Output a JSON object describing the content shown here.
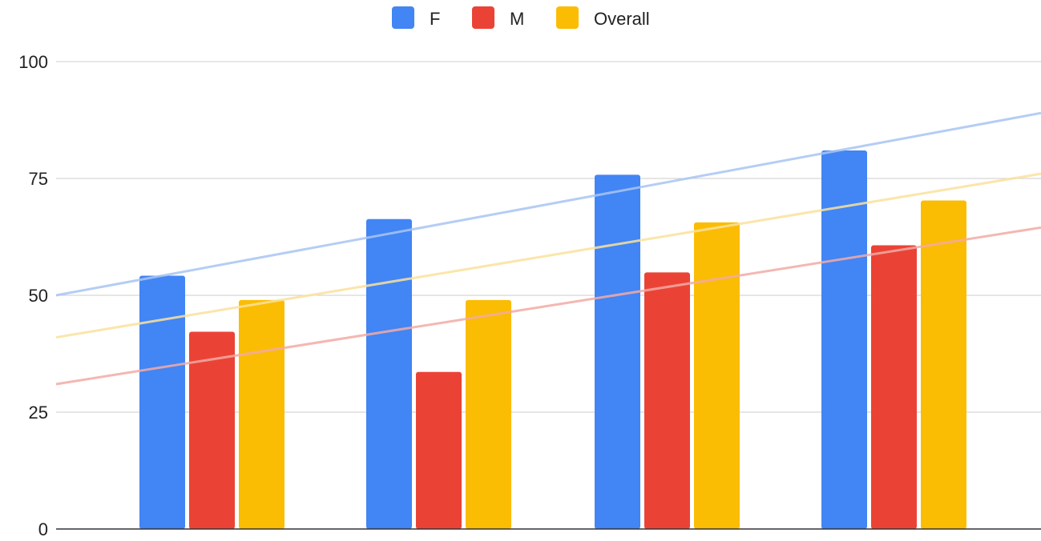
{
  "chart_data": {
    "type": "bar",
    "title": "",
    "xlabel": "",
    "ylabel": "",
    "categories": [
      "",
      "",
      "",
      ""
    ],
    "series": [
      {
        "name": "F",
        "color": "#4285F4",
        "values": [
          54.2,
          66.3,
          75.8,
          81.0
        ]
      },
      {
        "name": "M",
        "color": "#EA4335",
        "values": [
          42.2,
          33.6,
          54.9,
          60.7
        ]
      },
      {
        "name": "Overall",
        "color": "#FBBC04",
        "values": [
          49.0,
          49.0,
          65.6,
          70.3
        ]
      }
    ],
    "trendlines": [
      {
        "series": "F",
        "color": "#A8C4F2",
        "start": 50.0,
        "end": 89.0
      },
      {
        "series": "M",
        "color": "#F2AAA5",
        "start": 31.0,
        "end": 64.5
      },
      {
        "series": "Overall",
        "color": "#F9E29C",
        "start": 41.0,
        "end": 76.0
      }
    ],
    "ylim": [
      0,
      100
    ],
    "yticks": [
      0,
      25,
      50,
      75,
      100
    ],
    "grid": true,
    "legend": "top-center"
  }
}
